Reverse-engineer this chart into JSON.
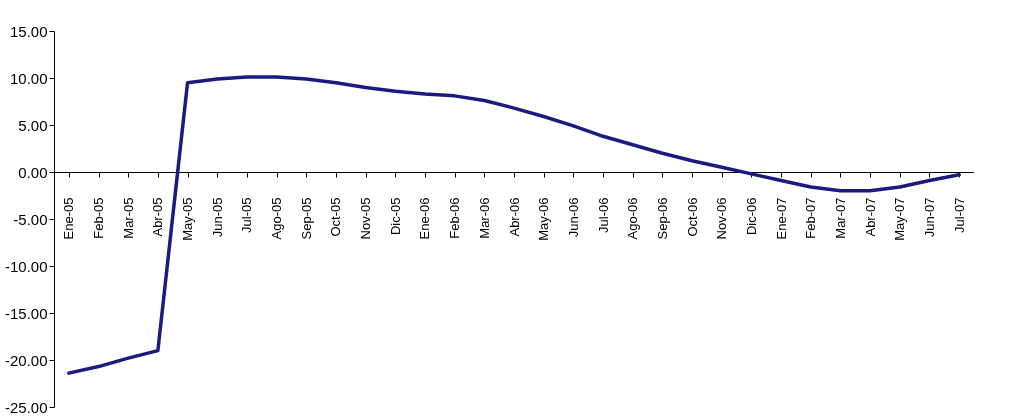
{
  "chart_data": {
    "type": "line",
    "categories": [
      "Ene-05",
      "Feb-05",
      "Mar-05",
      "Abr-05",
      "May-05",
      "Jun-05",
      "Jul-05",
      "Ago-05",
      "Sep-05",
      "Oct-05",
      "Nov-05",
      "Dic-05",
      "Ene-06",
      "Feb-06",
      "Mar-06",
      "Abr-06",
      "May-06",
      "Jun-06",
      "Jul-06",
      "Ago-06",
      "Sep-06",
      "Oct-06",
      "Nov-06",
      "Dic-06",
      "Ene-07",
      "Feb-07",
      "Mar-07",
      "Abr-07",
      "May-07",
      "Jun-07",
      "Jul-07"
    ],
    "series": [
      {
        "color": "#1a1a80",
        "values": [
          -21.4,
          -20.7,
          -19.8,
          -19.0,
          9.5,
          9.9,
          10.1,
          10.1,
          9.9,
          9.5,
          9.0,
          8.6,
          8.3,
          8.1,
          7.6,
          6.8,
          5.9,
          4.9,
          3.8,
          2.9,
          2.0,
          1.2,
          0.5,
          -0.2,
          -0.9,
          -1.6,
          -2.0,
          -2.0,
          -1.6,
          -0.9,
          -0.3
        ]
      }
    ],
    "ylim": [
      -25,
      15
    ],
    "yticks": [
      {
        "value": -25,
        "label": "-25.00"
      },
      {
        "value": -20,
        "label": "-20.00"
      },
      {
        "value": -15,
        "label": "-15.00"
      },
      {
        "value": -10,
        "label": "-10.00"
      },
      {
        "value": -5,
        "label": "-5.00"
      },
      {
        "value": 0,
        "label": "0.00"
      },
      {
        "value": 5,
        "label": "5.00"
      },
      {
        "value": 10,
        "label": "10.00"
      },
      {
        "value": 15,
        "label": "15.00"
      }
    ],
    "grid": false,
    "marker": "none",
    "line_style": "solid"
  }
}
